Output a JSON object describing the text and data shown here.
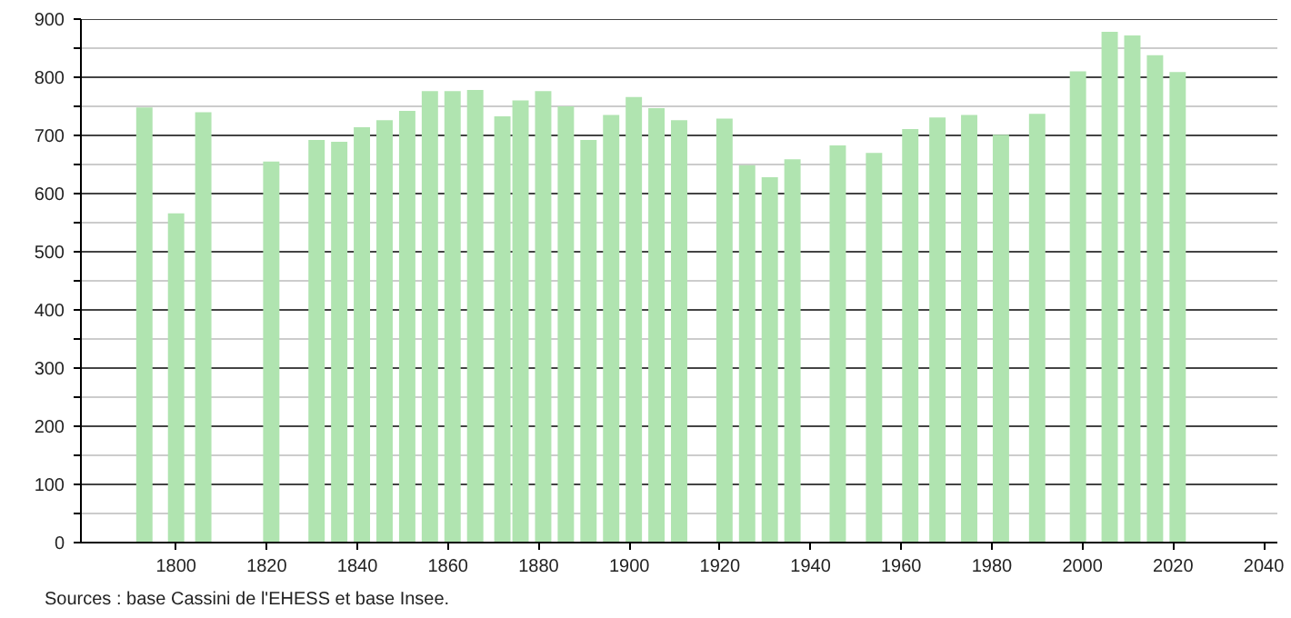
{
  "chart_data": {
    "type": "bar",
    "x": [
      1793,
      1800,
      1806,
      1821,
      1831,
      1836,
      1841,
      1846,
      1851,
      1856,
      1861,
      1866,
      1872,
      1876,
      1881,
      1886,
      1891,
      1896,
      1901,
      1906,
      1911,
      1921,
      1926,
      1931,
      1936,
      1946,
      1954,
      1962,
      1968,
      1975,
      1982,
      1990,
      1999,
      2006,
      2011,
      2016,
      2021
    ],
    "values": [
      748,
      566,
      740,
      655,
      692,
      689,
      714,
      726,
      742,
      776,
      776,
      778,
      733,
      760,
      776,
      750,
      692,
      735,
      766,
      747,
      726,
      729,
      649,
      628,
      659,
      683,
      670,
      711,
      731,
      735,
      701,
      737,
      810,
      878,
      872,
      838,
      809
    ],
    "color": "#b0e4b0",
    "xlim": [
      1779,
      2043
    ],
    "xticks": [
      1800,
      1820,
      1840,
      1860,
      1880,
      1900,
      1920,
      1940,
      1960,
      1980,
      2000,
      2020,
      2040
    ],
    "ylim": [
      0,
      900
    ],
    "yticks": [
      0,
      {
        "value": 50,
        "label": null
      },
      100,
      {
        "value": 150,
        "label": null
      },
      200,
      {
        "value": 250,
        "label": null
      },
      300,
      {
        "value": 350,
        "label": null
      },
      400,
      {
        "value": 450,
        "label": null
      },
      500,
      {
        "value": 550,
        "label": null
      },
      600,
      {
        "value": 650,
        "label": null
      },
      700,
      {
        "value": 750,
        "label": null
      },
      800,
      {
        "value": 850,
        "label": null
      },
      900
    ],
    "grid": "y",
    "annotations": [
      "Sources : base Cassini de l'EHESS et base Insee."
    ]
  }
}
